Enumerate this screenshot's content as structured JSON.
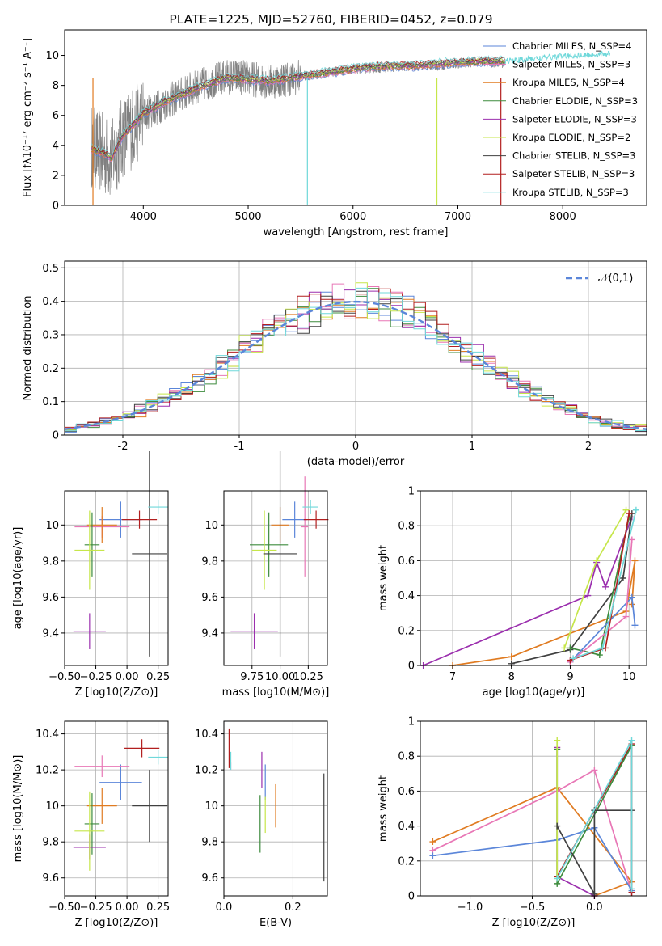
{
  "chart_data": [
    {
      "type": "line",
      "title": "PLATE=1225, MJD=52760, FIBERID=0452, z=0.079",
      "xlabel": "wavelength [Angstrom, rest frame]",
      "ylabel": "Flux [fλ10⁻¹⁷ erg cm⁻² s⁻¹ A⁻¹]",
      "xlim": [
        3250,
        8800
      ],
      "ylim": [
        0,
        11.7
      ],
      "xticks": [
        4000,
        5000,
        6000,
        7000,
        8000
      ],
      "yticks": [
        0,
        2,
        4,
        6,
        8,
        10
      ],
      "legend": "top-right",
      "data_spectrum": {
        "name": "data",
        "color": "#808080",
        "x": [
          3500,
          3700,
          3800,
          4000,
          4200,
          4500,
          4800,
          5000,
          5200,
          5500,
          5800,
          6000,
          6300,
          6600,
          6900,
          7200,
          7400,
          7600,
          7900,
          8200,
          8400
        ],
        "y": [
          4.0,
          3.0,
          4.5,
          6.0,
          6.8,
          7.9,
          8.6,
          8.5,
          8.2,
          8.6,
          8.9,
          9.1,
          9.2,
          9.3,
          9.4,
          9.6,
          9.5,
          9.6,
          9.8,
          10.0,
          10.1
        ]
      },
      "series": [
        {
          "name": "Chabrier MILES, N_SSP=4",
          "color": "#5b86d9"
        },
        {
          "name": "Salpeter MILES, N_SSP=3",
          "color": "#e877b6"
        },
        {
          "name": "Kroupa MILES, N_SSP=4",
          "color": "#e07b21"
        },
        {
          "name": "Chabrier ELODIE, N_SSP=3",
          "color": "#3d8b3d"
        },
        {
          "name": "Salpeter ELODIE, N_SSP=3",
          "color": "#9b2fae"
        },
        {
          "name": "Kroupa ELODIE, N_SSP=2",
          "color": "#c6e64a"
        },
        {
          "name": "Chabrier STELIB, N_SSP=3",
          "color": "#404040"
        },
        {
          "name": "Salpeter STELIB, N_SSP=3",
          "color": "#b21f1f"
        },
        {
          "name": "Kroupa STELIB, N_SSP=3",
          "color": "#6fd8da"
        }
      ],
      "model_y": [
        3.8,
        3.2,
        4.6,
        6.1,
        6.9,
        7.8,
        8.5,
        8.4,
        8.3,
        8.6,
        8.9,
        9.1,
        9.3,
        9.3,
        9.5,
        9.6,
        9.6,
        9.7,
        9.9,
        10.0,
        10.1
      ]
    },
    {
      "type": "area",
      "xlabel": "(data-model)/error",
      "ylabel": "Normed distribution",
      "xlim": [
        -2.5,
        2.5
      ],
      "ylim": [
        0,
        0.52
      ],
      "xticks": [
        -2,
        -1,
        0,
        1,
        2
      ],
      "yticks": [
        0.0,
        0.1,
        0.2,
        0.3,
        0.4,
        0.5
      ],
      "grid": true,
      "legend": "top-right",
      "curve_label": "𝒩(0,1)",
      "curve_color": "#5b86d9",
      "bin_edges_start": -2.5,
      "bin_width": 0.1,
      "hist_colors": [
        "#5b86d9",
        "#e877b6",
        "#e07b21",
        "#3d8b3d",
        "#9b2fae",
        "#c6e64a",
        "#404040",
        "#b21f1f",
        "#6fd8da"
      ]
    },
    {
      "type": "scatter",
      "xlabel": "Z [log10(Z/Z⊙)]",
      "ylabel": "age  [log10(age/yr)]",
      "xlim": [
        -0.5,
        0.33
      ],
      "ylim": [
        9.22,
        10.19
      ],
      "xticks": [
        -0.5,
        -0.25,
        0.0,
        0.25
      ],
      "xticklabels": [
        "−0.50",
        "−0.25",
        "0.00",
        "0.25"
      ],
      "yticks": [
        9.4,
        9.6,
        9.8,
        10.0
      ],
      "grid": true,
      "points": [
        {
          "x": -0.05,
          "y": 10.03,
          "xerr": 0.17,
          "yerr": 0.1,
          "color": "#5b86d9"
        },
        {
          "x": -0.2,
          "y": 9.99,
          "xerr": 0.22,
          "yerr": 0.06,
          "color": "#e877b6"
        },
        {
          "x": -0.2,
          "y": 10.0,
          "xerr": 0.12,
          "yerr": 0.1,
          "color": "#e07b21"
        },
        {
          "x": -0.28,
          "y": 9.89,
          "xerr": 0.06,
          "yerr": 0.18,
          "color": "#3d8b3d"
        },
        {
          "x": -0.3,
          "y": 9.41,
          "xerr": 0.13,
          "yerr": 0.1,
          "color": "#9b2fae"
        },
        {
          "x": -0.3,
          "y": 9.86,
          "xerr": 0.12,
          "yerr": 0.22,
          "color": "#c6e64a"
        },
        {
          "x": 0.18,
          "y": 9.84,
          "xerr": 0.14,
          "yerr": 0.57,
          "color": "#404040"
        },
        {
          "x": 0.1,
          "y": 10.03,
          "xerr": 0.14,
          "yerr": 0.05,
          "color": "#b21f1f"
        },
        {
          "x": 0.25,
          "y": 10.1,
          "xerr": 0.08,
          "yerr": 0.04,
          "color": "#6fd8da"
        }
      ]
    },
    {
      "type": "scatter",
      "xlabel": "mass [log10(M/M⊙)]",
      "ylabel": "",
      "xlim": [
        9.5,
        10.42
      ],
      "ylim": [
        9.22,
        10.19
      ],
      "xticks": [
        9.75,
        10.0,
        10.25
      ],
      "xticklabels": [
        "9.75",
        "10.00",
        "10.25"
      ],
      "yticks": [
        9.4,
        9.6,
        9.8,
        10.0
      ],
      "grid": true,
      "points": [
        {
          "x": 10.13,
          "y": 10.03,
          "xerr": 0.11,
          "yerr": 0.1,
          "color": "#5b86d9"
        },
        {
          "x": 10.22,
          "y": 9.99,
          "xerr": 0.03,
          "yerr": 0.28,
          "color": "#e877b6"
        },
        {
          "x": 10.0,
          "y": 10.0,
          "xerr": 0.08,
          "yerr": 0.1,
          "color": "#e07b21"
        },
        {
          "x": 9.9,
          "y": 9.89,
          "xerr": 0.17,
          "yerr": 0.18,
          "color": "#3d8b3d"
        },
        {
          "x": 9.77,
          "y": 9.41,
          "xerr": 0.21,
          "yerr": 0.1,
          "color": "#9b2fae"
        },
        {
          "x": 9.86,
          "y": 9.86,
          "xerr": 0.11,
          "yerr": 0.22,
          "color": "#c6e64a"
        },
        {
          "x": 10.0,
          "y": 9.84,
          "xerr": 0.15,
          "yerr": 0.57,
          "color": "#404040"
        },
        {
          "x": 10.32,
          "y": 10.03,
          "xerr": 0.11,
          "yerr": 0.05,
          "color": "#b21f1f"
        },
        {
          "x": 10.27,
          "y": 10.1,
          "xerr": 0.07,
          "yerr": 0.04,
          "color": "#6fd8da"
        }
      ]
    },
    {
      "type": "line",
      "xlabel": "age  [log10(age/yr)]",
      "ylabel": "mass weight",
      "xlim": [
        6.45,
        10.3
      ],
      "ylim": [
        0,
        1
      ],
      "xticks": [
        7,
        8,
        9,
        10
      ],
      "yticks": [
        0.0,
        0.2,
        0.4,
        0.6,
        0.8,
        1.0
      ],
      "grid": true,
      "series": [
        {
          "color": "#9b2fae",
          "x": [
            6.5,
            9.3,
            9.45,
            9.6,
            10.05
          ],
          "y": [
            0.0,
            0.4,
            0.59,
            0.45,
            0.85
          ]
        },
        {
          "color": "#e07b21",
          "x": [
            7.0,
            8.0,
            9.95,
            10.1,
            10.05
          ],
          "y": [
            0.0,
            0.05,
            0.31,
            0.6,
            0.35
          ]
        },
        {
          "color": "#404040",
          "x": [
            8.0,
            9.0,
            9.9,
            10.05
          ],
          "y": [
            0.01,
            0.09,
            0.5,
            0.87
          ]
        },
        {
          "color": "#c6e64a",
          "x": [
            8.9,
            9.45,
            9.95
          ],
          "y": [
            0.1,
            0.6,
            0.89
          ]
        },
        {
          "color": "#3d8b3d",
          "x": [
            9.0,
            9.5,
            10.0
          ],
          "y": [
            0.1,
            0.06,
            0.85
          ]
        },
        {
          "color": "#5b86d9",
          "x": [
            9.0,
            10.05,
            10.1
          ],
          "y": [
            0.02,
            0.39,
            0.23
          ]
        },
        {
          "color": "#e877b6",
          "x": [
            9.0,
            9.95,
            10.05
          ],
          "y": [
            0.02,
            0.28,
            0.72
          ]
        },
        {
          "color": "#b21f1f",
          "x": [
            9.0,
            9.6,
            10.0
          ],
          "y": [
            0.03,
            0.1,
            0.87
          ]
        },
        {
          "color": "#6fd8da",
          "x": [
            9.05,
            9.55,
            10.12
          ],
          "y": [
            0.04,
            0.1,
            0.89
          ]
        }
      ]
    },
    {
      "type": "scatter",
      "xlabel": "Z [log10(Z/Z⊙)]",
      "ylabel": "mass [log10(M/M⊙)]",
      "xlim": [
        -0.5,
        0.33
      ],
      "ylim": [
        9.5,
        10.47
      ],
      "xticks": [
        -0.5,
        -0.25,
        0.0,
        0.25
      ],
      "xticklabels": [
        "−0.50",
        "−0.25",
        "0.00",
        "0.25"
      ],
      "yticks": [
        9.6,
        9.8,
        10.0,
        10.2,
        10.4
      ],
      "grid": true,
      "points": [
        {
          "x": -0.05,
          "y": 10.13,
          "xerr": 0.17,
          "yerr": 0.1,
          "color": "#5b86d9"
        },
        {
          "x": -0.2,
          "y": 10.22,
          "xerr": 0.22,
          "yerr": 0.06,
          "color": "#e877b6"
        },
        {
          "x": -0.2,
          "y": 10.0,
          "xerr": 0.12,
          "yerr": 0.1,
          "color": "#e07b21"
        },
        {
          "x": -0.28,
          "y": 9.9,
          "xerr": 0.06,
          "yerr": 0.17,
          "color": "#3d8b3d"
        },
        {
          "x": -0.3,
          "y": 9.77,
          "xerr": 0.13,
          "yerr": 0.07,
          "color": "#9b2fae"
        },
        {
          "x": -0.3,
          "y": 9.86,
          "xerr": 0.12,
          "yerr": 0.22,
          "color": "#c6e64a"
        },
        {
          "x": 0.18,
          "y": 10.0,
          "xerr": 0.14,
          "yerr": 0.2,
          "color": "#404040"
        },
        {
          "x": 0.12,
          "y": 10.32,
          "xerr": 0.14,
          "yerr": 0.05,
          "color": "#b21f1f"
        },
        {
          "x": 0.25,
          "y": 10.27,
          "xerr": 0.08,
          "yerr": 0.04,
          "color": "#6fd8da"
        }
      ]
    },
    {
      "type": "scatter",
      "xlabel": "E(B-V)",
      "ylabel": "",
      "xlim": [
        0.0,
        0.3
      ],
      "ylim": [
        9.5,
        10.47
      ],
      "xticks": [
        0.0,
        0.2
      ],
      "xticklabels": [
        "0.0",
        "0.2"
      ],
      "yticks": [
        9.6,
        9.8,
        10.0,
        10.2,
        10.4
      ],
      "grid": true,
      "points": [
        {
          "x": 0.12,
          "y": 10.13,
          "yerr": 0.1,
          "color": "#5b86d9"
        },
        {
          "x": 0.02,
          "y": 10.22,
          "yerr": 0.02,
          "color": "#e877b6"
        },
        {
          "x": 0.15,
          "y": 10.0,
          "yerr": 0.12,
          "color": "#e07b21"
        },
        {
          "x": 0.105,
          "y": 9.9,
          "yerr": 0.16,
          "color": "#3d8b3d"
        },
        {
          "x": 0.11,
          "y": 10.2,
          "yerr": 0.1,
          "color": "#9b2fae"
        },
        {
          "x": 0.12,
          "y": 9.95,
          "yerr": 0.1,
          "color": "#c6e64a"
        },
        {
          "x": 0.29,
          "y": 9.88,
          "yerr": 0.3,
          "color": "#404040"
        },
        {
          "x": 0.015,
          "y": 10.32,
          "yerr": 0.11,
          "color": "#b21f1f"
        },
        {
          "x": 0.02,
          "y": 10.25,
          "yerr": 0.05,
          "color": "#6fd8da"
        }
      ]
    },
    {
      "type": "line",
      "xlabel": "Z [log10(Z/Z⊙)]",
      "ylabel": "mass weight",
      "xlim": [
        -1.4,
        0.42
      ],
      "ylim": [
        0,
        1
      ],
      "xticks": [
        -1.0,
        -0.5,
        0.0
      ],
      "xticklabels": [
        "−1.0",
        "−0.5",
        "0.0"
      ],
      "yticks": [
        0.0,
        0.2,
        0.4,
        0.6,
        0.8,
        1.0
      ],
      "grid": true,
      "series": [
        {
          "color": "#e07b21",
          "x": [
            -1.3,
            -0.3,
            0.3,
            0.0
          ],
          "y": [
            0.31,
            0.62,
            0.08,
            0.0
          ]
        },
        {
          "color": "#e877b6",
          "x": [
            -1.3,
            -0.3,
            0.0,
            0.3
          ],
          "y": [
            0.26,
            0.6,
            0.72,
            0.02
          ]
        },
        {
          "color": "#5b86d9",
          "x": [
            -1.3,
            -0.3,
            0.0,
            0.3
          ],
          "y": [
            0.23,
            0.32,
            0.39,
            0.03
          ]
        },
        {
          "color": "#9b2fae",
          "x": [
            -0.3,
            -0.3,
            0.0
          ],
          "y": [
            0.85,
            0.11,
            0.0
          ]
        },
        {
          "color": "#b21f1f",
          "x": [
            -0.3,
            0.3,
            0.3
          ],
          "y": [
            0.11,
            0.87,
            0.02
          ]
        },
        {
          "color": "#3d8b3d",
          "x": [
            -0.3,
            -0.3,
            0.3
          ],
          "y": [
            0.84,
            0.07,
            0.86
          ]
        },
        {
          "color": "#c6e64a",
          "x": [
            -0.3,
            -0.3
          ],
          "y": [
            0.89,
            0.1
          ]
        },
        {
          "color": "#404040",
          "x": [
            -0.3,
            0.0,
            0.0,
            0.3
          ],
          "y": [
            0.4,
            0.01,
            0.49,
            0.49
          ]
        },
        {
          "color": "#6fd8da",
          "x": [
            -0.3,
            0.3,
            0.3
          ],
          "y": [
            0.1,
            0.89,
            0.04
          ]
        }
      ]
    }
  ]
}
